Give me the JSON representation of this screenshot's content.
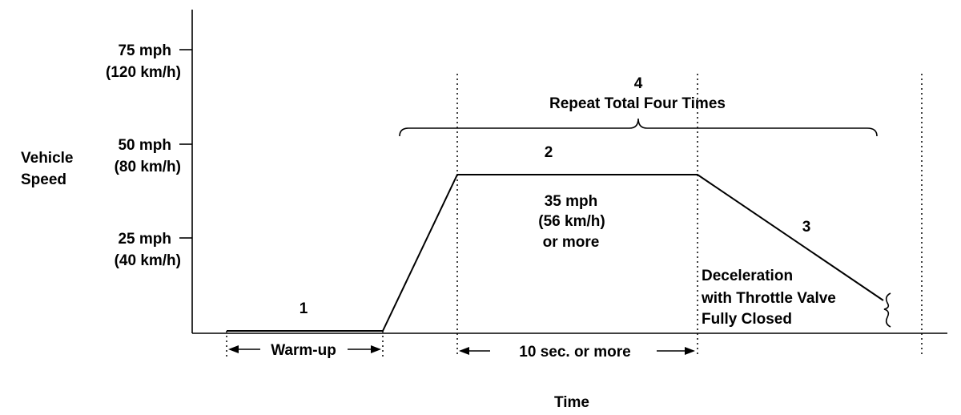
{
  "axes": {
    "y_title": [
      "Vehicle",
      "Speed"
    ],
    "x_title": "Time",
    "ticks": [
      {
        "speed_mph": 75,
        "mph": "75 mph",
        "kmh": "(120 km/h)"
      },
      {
        "speed_mph": 50,
        "mph": "50 mph",
        "kmh": "(80 km/h)"
      },
      {
        "speed_mph": 25,
        "mph": "25 mph",
        "kmh": "(40 km/h)"
      }
    ]
  },
  "steps": {
    "step1": {
      "number": "1",
      "span_label": "Warm-up"
    },
    "step2": {
      "number": "2",
      "speed_lines": [
        "35 mph",
        "(56 km/h)",
        "or more"
      ],
      "span_label": "10 sec. or more"
    },
    "step3": {
      "number": "3",
      "note_lines": [
        "Deceleration",
        "with Throttle Valve",
        "Fully Closed"
      ]
    },
    "step4": {
      "number": "4",
      "label": "Repeat Total Four Times"
    }
  }
}
